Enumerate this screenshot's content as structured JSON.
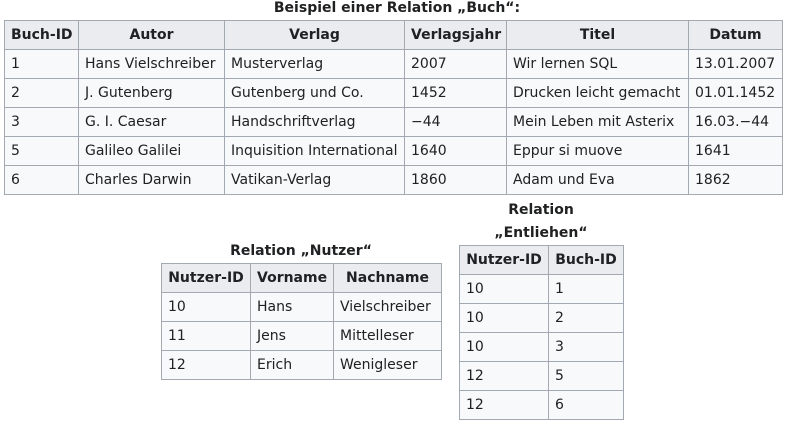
{
  "buch": {
    "caption": "Beispiel einer Relation „Buch“:",
    "headers": [
      "Buch-ID",
      "Autor",
      "Verlag",
      "Verlagsjahr",
      "Titel",
      "Datum"
    ],
    "rows": [
      [
        "1",
        "Hans Vielschreiber",
        "Musterverlag",
        "2007",
        "Wir lernen SQL",
        "13.01.2007"
      ],
      [
        "2",
        "J. Gutenberg",
        "Gutenberg und Co.",
        "1452",
        "Drucken leicht gemacht",
        "01.01.1452"
      ],
      [
        "3",
        "G. I. Caesar",
        "Handschriftverlag",
        "−44",
        "Mein Leben mit Asterix",
        "16.03.−44"
      ],
      [
        "5",
        "Galileo Galilei",
        "Inquisition International",
        "1640",
        "Eppur si muove",
        "1641"
      ],
      [
        "6",
        "Charles Darwin",
        "Vatikan-Verlag",
        "1860",
        "Adam und Eva",
        "1862"
      ]
    ]
  },
  "nutzer": {
    "caption": "Relation „Nutzer“",
    "headers": [
      "Nutzer-ID",
      "Vorname",
      "Nachname"
    ],
    "rows": [
      [
        "10",
        "Hans",
        "Vielschreiber"
      ],
      [
        "11",
        "Jens",
        "Mittelleser"
      ],
      [
        "12",
        "Erich",
        "Wenigleser"
      ]
    ]
  },
  "entliehen": {
    "caption_line1": "Relation",
    "caption_line2": "„Entliehen“",
    "headers": [
      "Nutzer-ID",
      "Buch-ID"
    ],
    "rows": [
      [
        "10",
        "1"
      ],
      [
        "10",
        "2"
      ],
      [
        "10",
        "3"
      ],
      [
        "12",
        "5"
      ],
      [
        "12",
        "6"
      ]
    ]
  }
}
